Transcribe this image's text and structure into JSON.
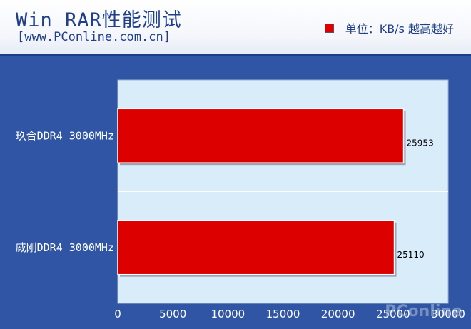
{
  "header": {
    "title": "Win RAR性能测试",
    "subtitle": "[www.PConline.com.cn]",
    "legend_label": "单位：KB/s 越高越好",
    "legend_color": "#dd0000"
  },
  "watermark": "PConline",
  "chart_data": {
    "type": "bar",
    "orientation": "horizontal",
    "categories": [
      "玖合DDR4 3000MHz",
      "威刚DDR4 3000MHz"
    ],
    "values": [
      25953,
      25110
    ],
    "xlim": [
      0,
      30000
    ],
    "xticks": [
      0,
      5000,
      10000,
      15000,
      20000,
      25000,
      30000
    ],
    "bar_color": "#dd0000",
    "plot_background": "#d8ecfa",
    "grid": false
  }
}
